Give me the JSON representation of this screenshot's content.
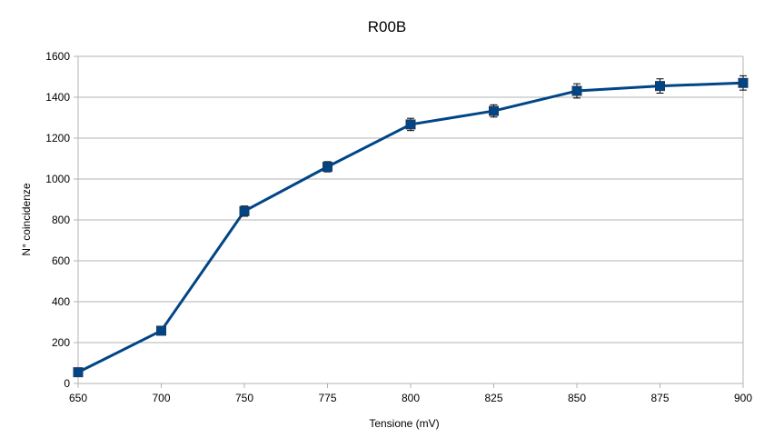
{
  "chart_data": {
    "type": "line",
    "title": "R00B",
    "xlabel": "Tensione (mV)",
    "ylabel": "N° coincidenze",
    "categories": [
      "650",
      "700",
      "750",
      "775",
      "800",
      "825",
      "850",
      "875",
      "900"
    ],
    "series": [
      {
        "values": [
          55,
          258,
          843,
          1060,
          1267,
          1333,
          1431,
          1455,
          1470
        ],
        "errors": [
          12,
          15,
          25,
          25,
          30,
          30,
          35,
          35,
          35
        ]
      }
    ],
    "ylim": [
      0,
      1600
    ],
    "yticks": [
      0,
      200,
      400,
      600,
      800,
      1000,
      1200,
      1400,
      1600
    ],
    "grid": true,
    "legend": "none",
    "colors": {
      "line": "#004586",
      "marker": "#004586",
      "grid": "#b3b3b3",
      "axis": "#b3b3b3",
      "errorbar": "#000000"
    }
  }
}
